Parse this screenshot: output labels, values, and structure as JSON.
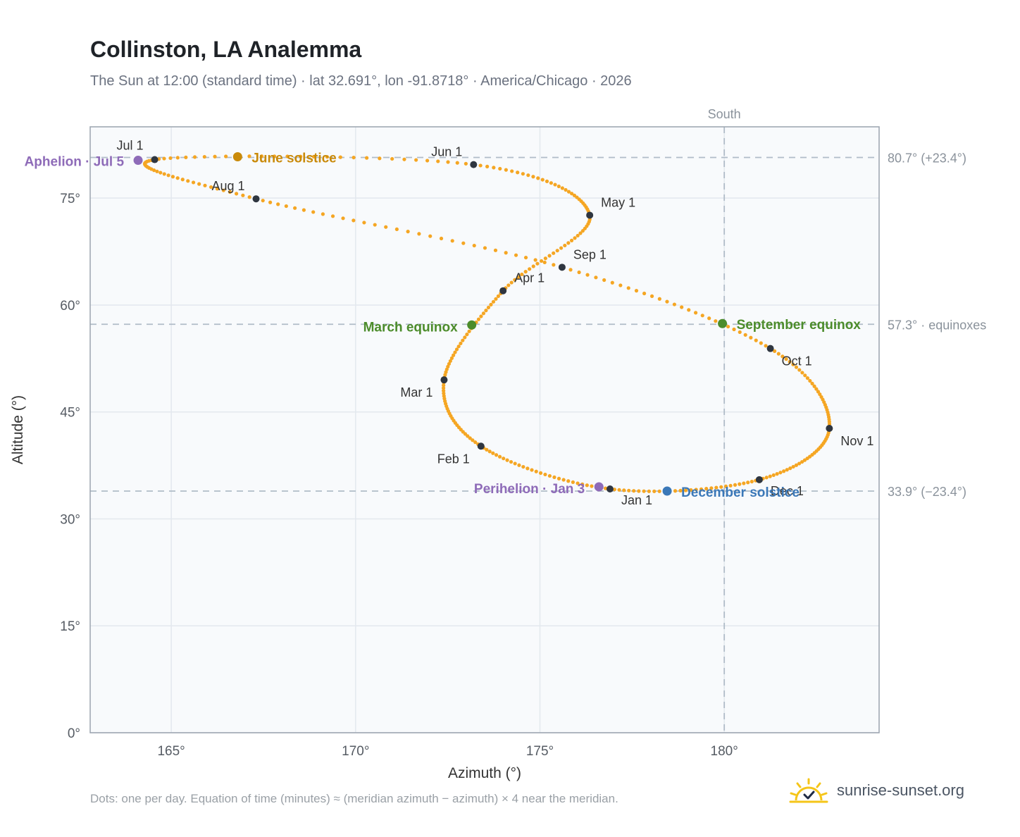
{
  "page": {
    "title": "Collinston, LA Analemma",
    "subtitle": "The Sun at 12:00 (standard time) · lat 32.691°, lon -91.8718° · America/Chicago · 2026",
    "footnote": "Dots: one per day. Equation of time (minutes) ≈ (meridian azimuth − azimuth) × 4 near the meridian.",
    "brand": "sunrise-sunset.org",
    "brand_icon": "sun-check-icon"
  },
  "chart_data": {
    "type": "scatter",
    "xlabel": "Azimuth (°)",
    "ylabel": "Altitude (°)",
    "xlim": [
      162.8,
      184.2
    ],
    "ylim": [
      0,
      85
    ],
    "x_ticks": [
      165,
      170,
      175,
      180
    ],
    "y_ticks": [
      0,
      15,
      30,
      45,
      60,
      75
    ],
    "x_tick_labels": [
      "165°",
      "170°",
      "175°",
      "180°"
    ],
    "y_tick_labels": [
      "0°",
      "15°",
      "30°",
      "45°",
      "60°",
      "75°"
    ],
    "grid": true,
    "meridian": {
      "azimuth": 180,
      "label": "South"
    },
    "reference_lines": [
      {
        "altitude": 80.7,
        "label": "80.7° (+23.4°)"
      },
      {
        "altitude": 57.3,
        "label": "57.3° · equinoxes"
      },
      {
        "altitude": 33.9,
        "label": "33.9° (−23.4°)"
      }
    ],
    "month_points": [
      {
        "label": "Jan 1",
        "azimuth": 176.9,
        "altitude": 34.2
      },
      {
        "label": "Feb 1",
        "azimuth": 173.4,
        "altitude": 40.2
      },
      {
        "label": "Mar 1",
        "azimuth": 172.4,
        "altitude": 49.5
      },
      {
        "label": "Apr 1",
        "azimuth": 174.0,
        "altitude": 62.0
      },
      {
        "label": "May 1",
        "azimuth": 176.35,
        "altitude": 72.6
      },
      {
        "label": "Jun 1",
        "azimuth": 173.2,
        "altitude": 79.7
      },
      {
        "label": "Jul 1",
        "azimuth": 164.55,
        "altitude": 80.4
      },
      {
        "label": "Aug 1",
        "azimuth": 167.3,
        "altitude": 74.9
      },
      {
        "label": "Sep 1",
        "azimuth": 175.6,
        "altitude": 65.3
      },
      {
        "label": "Oct 1",
        "azimuth": 181.25,
        "altitude": 53.9
      },
      {
        "label": "Nov 1",
        "azimuth": 182.85,
        "altitude": 42.7
      },
      {
        "label": "Dec 1",
        "azimuth": 180.95,
        "altitude": 35.5
      }
    ],
    "events": [
      {
        "label": "June solstice",
        "azimuth": 166.8,
        "altitude": 80.8,
        "color": "#c98a0a"
      },
      {
        "label": "March equinox",
        "azimuth": 173.15,
        "altitude": 57.2,
        "color": "#4c8c2b"
      },
      {
        "label": "September equinox",
        "azimuth": 179.95,
        "altitude": 57.4,
        "color": "#4c8c2b"
      },
      {
        "label": "December solstice",
        "azimuth": 178.45,
        "altitude": 33.9,
        "color": "#3b78b8"
      },
      {
        "label": "Perihelion · Jan 3",
        "azimuth": 176.6,
        "altitude": 34.5,
        "color": "#8e6bb8"
      },
      {
        "label": "Aphelion · Jul 5",
        "azimuth": 164.1,
        "altitude": 80.3,
        "color": "#8e6bb8"
      }
    ],
    "curve_color": "#f5a623"
  }
}
